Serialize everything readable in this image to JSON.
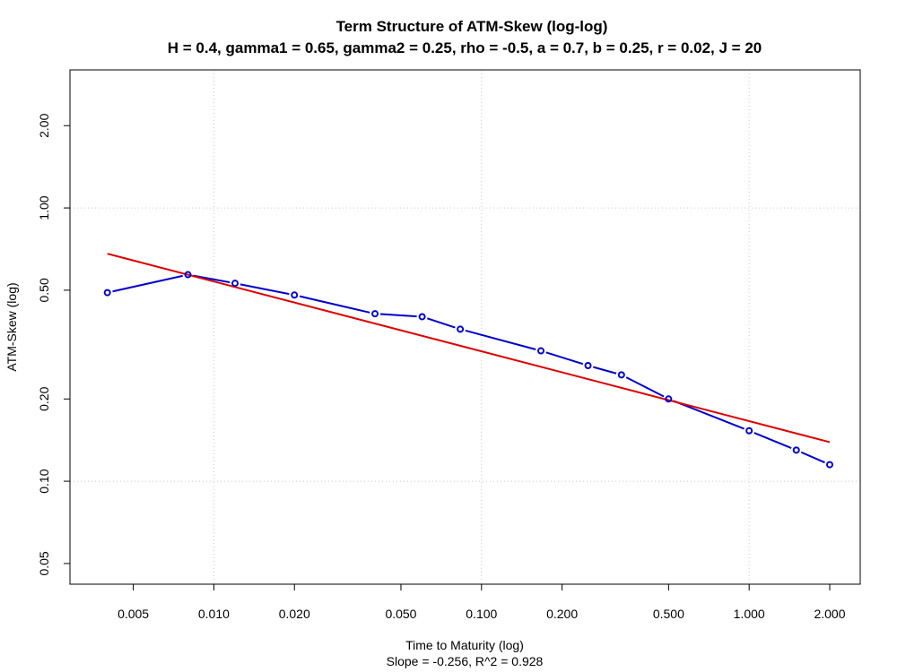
{
  "chart_data": {
    "type": "line",
    "title": "Term Structure of ATM-Skew (log-log)",
    "subtitle": "H = 0.4, gamma1 = 0.65, gamma2 = 0.25, rho = -0.5, a = 0.7, b = 0.25, r = 0.02, J = 20",
    "xlabel": "Time to Maturity (log)",
    "ylabel": "ATM-Skew (log)",
    "footnote": "Slope = -0.256, R^2 = 0.928",
    "xscale": "log",
    "yscale": "log",
    "xlim": [
      0.0029,
      2.6
    ],
    "ylim": [
      0.042,
      3.2
    ],
    "grid": true,
    "x_ticks": [
      0.005,
      0.01,
      0.02,
      0.05,
      0.1,
      0.2,
      0.5,
      1,
      2
    ],
    "x_tick_labels": [
      "0.005",
      "0.010",
      "0.020",
      "0.050",
      "0.100",
      "0.200",
      "0.500",
      "1.000",
      "2.000"
    ],
    "y_ticks": [
      0.05,
      0.1,
      0.2,
      0.5,
      1,
      2
    ],
    "y_tick_labels": [
      "0.05",
      "0.10",
      "0.20",
      "0.50",
      "1.00",
      "2.00"
    ],
    "grid_x": [
      0.01,
      0.1,
      1
    ],
    "grid_y": [
      0.1,
      1
    ],
    "series": [
      {
        "type": "line-points",
        "color": "#0000cc",
        "x": [
          0.004,
          0.008,
          0.012,
          0.02,
          0.04,
          0.06,
          0.0833,
          0.1667,
          0.25,
          0.3333,
          0.5,
          1.0,
          1.5,
          2.0
        ],
        "y": [
          0.49,
          0.57,
          0.53,
          0.48,
          0.41,
          0.4,
          0.36,
          0.3,
          0.265,
          0.245,
          0.2,
          0.153,
          0.13,
          0.115
        ]
      },
      {
        "type": "fit-line",
        "color": "#dd0000",
        "x": [
          0.004,
          2.0
        ],
        "y": [
          0.68,
          0.139
        ]
      }
    ]
  }
}
